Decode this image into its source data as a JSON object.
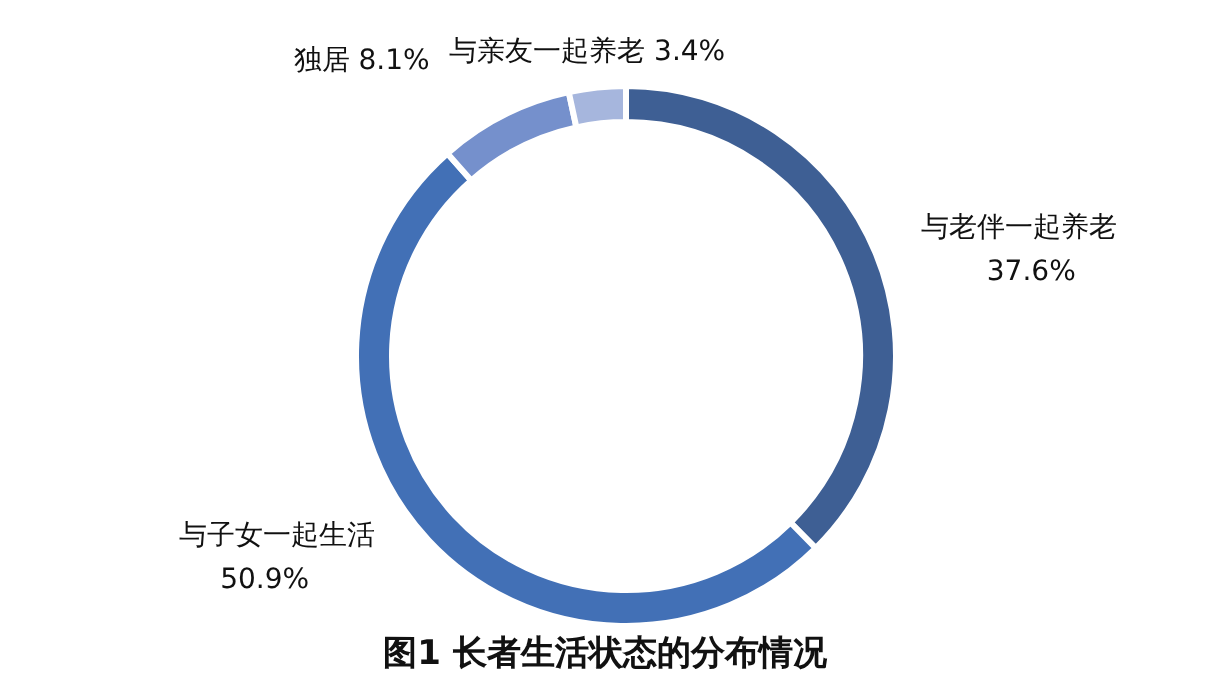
{
  "chart_data": {
    "type": "donut",
    "title": "图1 长者生活状态的分布情况",
    "categories": [
      "与老伴一起养老",
      "与子女一起生活",
      "独居",
      "与亲友一起养老"
    ],
    "values": [
      37.6,
      50.9,
      8.1,
      3.4
    ],
    "value_labels": [
      "37.6%",
      "50.9%",
      "8.1%",
      "3.4%"
    ],
    "colors": [
      "#3e5f94",
      "#4270b6",
      "#7590cc",
      "#a6b6dd"
    ]
  }
}
